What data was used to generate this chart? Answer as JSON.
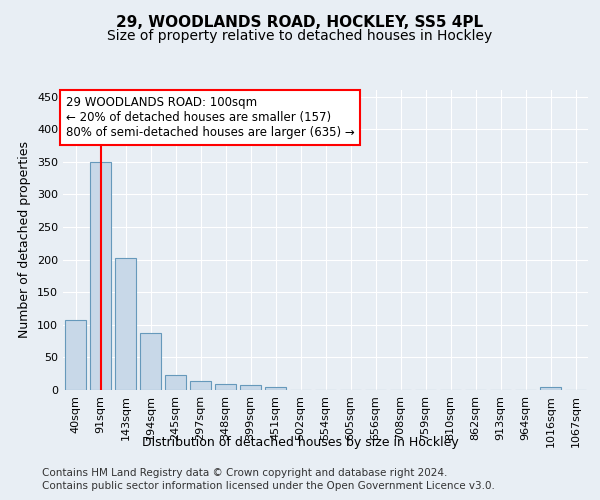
{
  "title": "29, WOODLANDS ROAD, HOCKLEY, SS5 4PL",
  "subtitle": "Size of property relative to detached houses in Hockley",
  "xlabel": "Distribution of detached houses by size in Hockley",
  "ylabel": "Number of detached properties",
  "footer_line1": "Contains HM Land Registry data © Crown copyright and database right 2024.",
  "footer_line2": "Contains public sector information licensed under the Open Government Licence v3.0.",
  "categories": [
    "40sqm",
    "91sqm",
    "143sqm",
    "194sqm",
    "245sqm",
    "297sqm",
    "348sqm",
    "399sqm",
    "451sqm",
    "502sqm",
    "554sqm",
    "605sqm",
    "656sqm",
    "708sqm",
    "759sqm",
    "810sqm",
    "862sqm",
    "913sqm",
    "964sqm",
    "1016sqm",
    "1067sqm"
  ],
  "values": [
    107,
    350,
    202,
    88,
    23,
    14,
    9,
    8,
    5,
    0,
    0,
    0,
    0,
    0,
    0,
    0,
    0,
    0,
    0,
    4,
    0
  ],
  "bar_color": "#c8d8e8",
  "bar_edge_color": "#6699bb",
  "red_line_x": 1.0,
  "annotation_text": "29 WOODLANDS ROAD: 100sqm\n← 20% of detached houses are smaller (157)\n80% of semi-detached houses are larger (635) →",
  "annotation_box_color": "white",
  "annotation_box_edge_color": "red",
  "ylim": [
    0,
    460
  ],
  "yticks": [
    0,
    50,
    100,
    150,
    200,
    250,
    300,
    350,
    400,
    450
  ],
  "bg_color": "#e8eef4",
  "plot_bg_color": "#e8eef4",
  "grid_color": "white",
  "title_fontsize": 11,
  "subtitle_fontsize": 10,
  "axis_label_fontsize": 9,
  "tick_fontsize": 8,
  "annotation_fontsize": 8.5,
  "footer_fontsize": 7.5
}
